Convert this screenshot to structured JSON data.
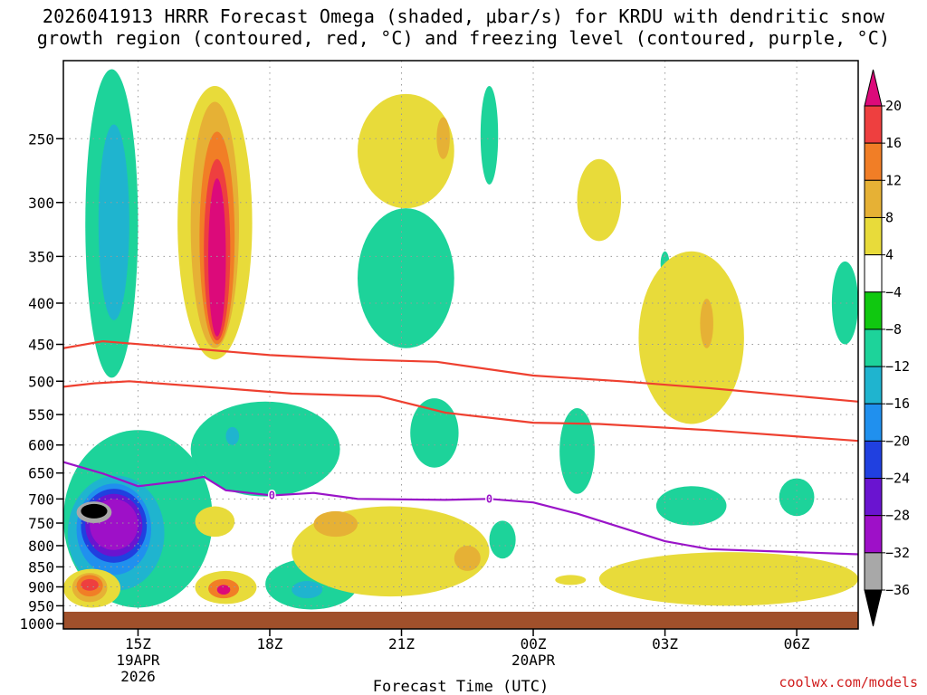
{
  "chart_data": {
    "type": "heatmap",
    "title_line1": "2026041913 HRRR Forecast Omega (shaded, μbar/s) for KRDU with dendritic snow",
    "title_line2": "growth region (contoured, red, °C) and freezing level (contoured, purple, °C)",
    "xlabel": "Forecast Time (UTC)",
    "credit": "coolwx.com/models",
    "x_range_hours": [
      -1.7,
      16.4
    ],
    "x_ticks": [
      {
        "hour": 0,
        "lines": [
          "15Z",
          "19APR",
          "2026"
        ]
      },
      {
        "hour": 3,
        "lines": [
          "18Z"
        ]
      },
      {
        "hour": 6,
        "lines": [
          "21Z"
        ]
      },
      {
        "hour": 9,
        "lines": [
          "00Z",
          "20APR"
        ]
      },
      {
        "hour": 12,
        "lines": [
          "03Z"
        ]
      },
      {
        "hour": 15,
        "lines": [
          "06Z"
        ]
      }
    ],
    "y_ticks_hpa": [
      250,
      300,
      350,
      400,
      450,
      500,
      550,
      600,
      650,
      700,
      750,
      800,
      850,
      900,
      950,
      1000
    ],
    "y_range_hpa": [
      200,
      1015
    ],
    "colorbar": {
      "levels": [
        "20",
        "16",
        "12",
        "8",
        "4",
        "−4",
        "−8",
        "−12",
        "−16",
        "−20",
        "−24",
        "−28",
        "−32",
        "−36"
      ],
      "colors": [
        "#dc0a7a",
        "#ee3f3f",
        "#f17e26",
        "#e6b135",
        "#e8db3a",
        "#ffffff",
        "#10c810",
        "#1dd39a",
        "#1fb4cf",
        "#2090ee",
        "#2040e0",
        "#6a14d0",
        "#9e10c8",
        "#a8a8a8",
        "#000000"
      ]
    },
    "dgz_red_contours": [
      {
        "name": "dgz-minus12-line",
        "points": [
          [
            -1.7,
            455
          ],
          [
            -0.8,
            446
          ],
          [
            0.5,
            452
          ],
          [
            3,
            464
          ],
          [
            5,
            470
          ],
          [
            6.8,
            473
          ],
          [
            9,
            492
          ],
          [
            11,
            500
          ],
          [
            13,
            510
          ],
          [
            16.4,
            530
          ]
        ]
      },
      {
        "name": "dgz-minus17-line",
        "points": [
          [
            -1.7,
            508
          ],
          [
            -1,
            503
          ],
          [
            -0.2,
            500
          ],
          [
            1.5,
            508
          ],
          [
            3.5,
            518
          ],
          [
            5.5,
            522
          ],
          [
            7,
            547
          ],
          [
            9,
            563
          ],
          [
            10.5,
            565
          ],
          [
            13,
            575
          ],
          [
            16.4,
            593
          ]
        ]
      }
    ],
    "freezing_level": {
      "name": "freezing-level-line",
      "label": "0",
      "label_hours": [
        3.05,
        8.0
      ],
      "points": [
        [
          -1.7,
          630
        ],
        [
          -0.8,
          651
        ],
        [
          0,
          675
        ],
        [
          1,
          665
        ],
        [
          1.5,
          657
        ],
        [
          2,
          683
        ],
        [
          3.05,
          693
        ],
        [
          4,
          688
        ],
        [
          5,
          700
        ],
        [
          7,
          702
        ],
        [
          8,
          700
        ],
        [
          9,
          707
        ],
        [
          10,
          730
        ],
        [
          12,
          790
        ],
        [
          13,
          808
        ],
        [
          16.4,
          820
        ]
      ]
    },
    "omega_regions": [
      {
        "level": "−8",
        "hours": [
          -1.2,
          0.0
        ],
        "hpa": [
          205,
          495
        ]
      },
      {
        "level": "−12",
        "hours": [
          -0.9,
          -0.2
        ],
        "hpa": [
          240,
          420
        ]
      },
      {
        "level": "4",
        "hours": [
          0.9,
          2.6
        ],
        "hpa": [
          215,
          470
        ]
      },
      {
        "level": "8",
        "hours": [
          1.2,
          2.3
        ],
        "hpa": [
          225,
          455
        ]
      },
      {
        "level": "12",
        "hours": [
          1.4,
          2.2
        ],
        "hpa": [
          245,
          450
        ]
      },
      {
        "level": "16",
        "hours": [
          1.5,
          2.1
        ],
        "hpa": [
          265,
          445
        ]
      },
      {
        "level": "20",
        "hours": [
          1.6,
          2.0
        ],
        "hpa": [
          280,
          440
        ]
      },
      {
        "level": "−8",
        "hours": [
          1.2,
          4.6
        ],
        "hpa": [
          530,
          695
        ]
      },
      {
        "level": "−12",
        "hours": [
          2.0,
          2.3
        ],
        "hpa": [
          570,
          600
        ]
      },
      {
        "level": "−8",
        "hours": [
          -1.7,
          1.7
        ],
        "hpa": [
          575,
          955
        ]
      },
      {
        "level": "−12",
        "hours": [
          -1.6,
          0.6
        ],
        "hpa": [
          655,
          910
        ]
      },
      {
        "level": "−16",
        "hours": [
          -1.4,
          0.3
        ],
        "hpa": [
          670,
          870
        ]
      },
      {
        "level": "−20",
        "hours": [
          -1.3,
          0.2
        ],
        "hpa": [
          680,
          840
        ]
      },
      {
        "level": "−24",
        "hours": [
          -1.2,
          0.1
        ],
        "hpa": [
          690,
          825
        ]
      },
      {
        "level": "−28",
        "hours": [
          -1.1,
          0.0
        ],
        "hpa": [
          700,
          810
        ]
      },
      {
        "level": "−32",
        "hours": [
          -1.4,
          -0.6
        ],
        "hpa": [
          705,
          750
        ]
      },
      {
        "level": "−36",
        "hours": [
          -1.3,
          -0.7
        ],
        "hpa": [
          710,
          740
        ]
      },
      {
        "level": "4",
        "hours": [
          -1.7,
          -0.4
        ],
        "hpa": [
          855,
          955
        ]
      },
      {
        "level": "8",
        "hours": [
          -1.5,
          -0.7
        ],
        "hpa": [
          865,
          940
        ]
      },
      {
        "level": "12",
        "hours": [
          -1.4,
          -0.8
        ],
        "hpa": [
          870,
          925
        ]
      },
      {
        "level": "16",
        "hours": [
          -1.3,
          -0.9
        ],
        "hpa": [
          880,
          910
        ]
      },
      {
        "level": "4",
        "hours": [
          1.3,
          2.2
        ],
        "hpa": [
          715,
          780
        ]
      },
      {
        "level": "4",
        "hours": [
          1.3,
          2.7
        ],
        "hpa": [
          860,
          945
        ]
      },
      {
        "level": "12",
        "hours": [
          1.6,
          2.3
        ],
        "hpa": [
          880,
          930
        ]
      },
      {
        "level": "20",
        "hours": [
          1.8,
          2.1
        ],
        "hpa": [
          895,
          920
        ]
      },
      {
        "level": "−8",
        "hours": [
          2.9,
          5.0
        ],
        "hpa": [
          830,
          960
        ]
      },
      {
        "level": "−12",
        "hours": [
          3.5,
          4.2
        ],
        "hpa": [
          885,
          930
        ]
      },
      {
        "level": "4",
        "hours": [
          3.5,
          8.0
        ],
        "hpa": [
          715,
          925
        ]
      },
      {
        "level": "8",
        "hours": [
          4.0,
          5.0
        ],
        "hpa": [
          725,
          780
        ]
      },
      {
        "level": "8",
        "hours": [
          7.2,
          7.8
        ],
        "hpa": [
          800,
          860
        ]
      },
      {
        "level": "4",
        "hours": [
          5.0,
          7.2
        ],
        "hpa": [
          220,
          305
        ]
      },
      {
        "level": "8",
        "hours": [
          6.8,
          7.1
        ],
        "hpa": [
          235,
          265
        ]
      },
      {
        "level": "−8",
        "hours": [
          5.0,
          7.2
        ],
        "hpa": [
          305,
          455
        ]
      },
      {
        "level": "−8",
        "hours": [
          7.8,
          8.2
        ],
        "hpa": [
          215,
          285
        ]
      },
      {
        "level": "−8",
        "hours": [
          6.2,
          7.3
        ],
        "hpa": [
          525,
          640
        ]
      },
      {
        "level": "−8",
        "hours": [
          8.0,
          8.6
        ],
        "hpa": [
          745,
          830
        ]
      },
      {
        "level": "−8",
        "hours": [
          9.6,
          10.4
        ],
        "hpa": [
          540,
          690
        ]
      },
      {
        "level": "4",
        "hours": [
          9.5,
          10.2
        ],
        "hpa": [
          870,
          895
        ]
      },
      {
        "level": "4",
        "hours": [
          10.0,
          11.0
        ],
        "hpa": [
          265,
          335
        ]
      },
      {
        "level": "−8",
        "hours": [
          11.9,
          12.1
        ],
        "hpa": [
          345,
          370
        ]
      },
      {
        "level": "4",
        "hours": [
          11.4,
          13.8
        ],
        "hpa": [
          345,
          565
        ]
      },
      {
        "level": "8",
        "hours": [
          12.8,
          13.1
        ],
        "hpa": [
          395,
          455
        ]
      },
      {
        "level": "−8",
        "hours": [
          11.8,
          13.4
        ],
        "hpa": [
          675,
          755
        ]
      },
      {
        "level": "4",
        "hours": [
          10.5,
          16.4
        ],
        "hpa": [
          815,
          950
        ]
      },
      {
        "level": "−8",
        "hours": [
          14.6,
          15.4
        ],
        "hpa": [
          660,
          735
        ]
      },
      {
        "level": "−8",
        "hours": [
          15.8,
          16.4
        ],
        "hpa": [
          355,
          450
        ]
      }
    ]
  }
}
